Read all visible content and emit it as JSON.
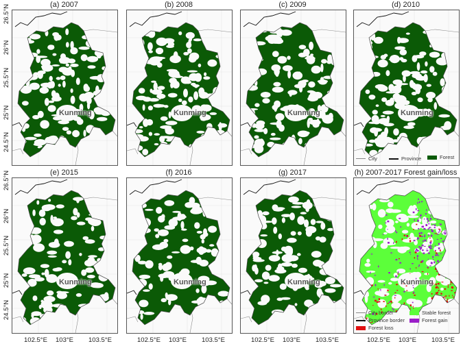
{
  "panels": [
    {
      "title": "(a) 2007",
      "city": "Kunming",
      "style": "forest"
    },
    {
      "title": "(b) 2008",
      "city": "Kunming",
      "style": "forest"
    },
    {
      "title": "(c) 2009",
      "city": "Kunming",
      "style": "forest"
    },
    {
      "title": "(d) 2010",
      "city": "Kunming",
      "style": "forest"
    },
    {
      "title": "(e) 2015",
      "city": "Kunming",
      "style": "forest"
    },
    {
      "title": "(f) 2016",
      "city": "Kunming",
      "style": "forest"
    },
    {
      "title": "(g) 2017",
      "city": "Kunming",
      "style": "forest"
    },
    {
      "title": "(h) 2007-2017 Forest gain/loss",
      "city": "Kunming",
      "style": "change"
    }
  ],
  "y_ticks": [
    "26.5°N",
    "26°N",
    "25.5°N",
    "25°N",
    "24.5°N"
  ],
  "x_ticks": [
    "102.5°E",
    "103°E",
    "103.5°E"
  ],
  "legend_top": {
    "city": "City",
    "province": "Province",
    "forest": "Forest"
  },
  "legend_bottom": {
    "city_border": "City border",
    "province_border": "Province border",
    "forest_loss": "Forest loss",
    "stable_forest": "Stable forest",
    "forest_gain": "Forest gain"
  },
  "colors": {
    "forest": "#0b5a06",
    "stable_forest": "#5cff3a",
    "forest_loss": "#e01010",
    "forest_gain": "#9b1fc9",
    "province_line": "#111111",
    "city_line": "#888888"
  }
}
